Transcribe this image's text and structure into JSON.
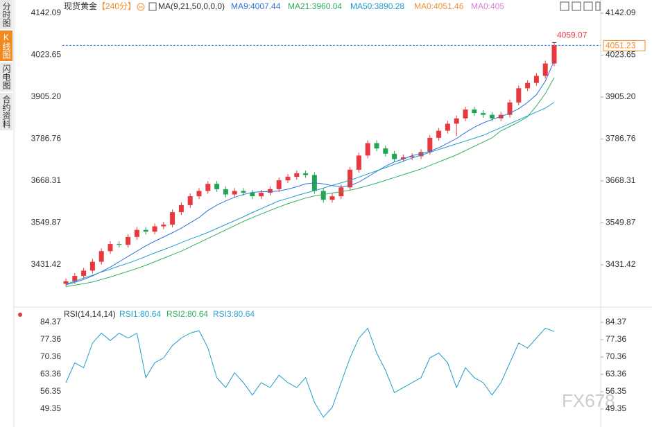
{
  "ui": {
    "tabs": [
      "分时图",
      "K线图",
      "闪电图",
      "合约资料"
    ],
    "active_tab": 1,
    "watermark": "FX678"
  },
  "chart_data": [
    {
      "type": "candlestick",
      "title": "现货黄金",
      "subtitle": "【240分】",
      "indicator": "MA(9,21,50,0,0,0)",
      "up_color": "#e8383d",
      "down_color": "#21a453",
      "open": [
        3378,
        3385,
        3400,
        3415,
        3440,
        3470,
        3490,
        3488,
        3510,
        3530,
        3525,
        3540,
        3545,
        3580,
        3600,
        3625,
        3640,
        3660,
        3645,
        3630,
        3640,
        3635,
        3625,
        3635,
        3645,
        3670,
        3680,
        3690,
        3685,
        3640,
        3615,
        3625,
        3650,
        3700,
        3740,
        3775,
        3760,
        3745,
        3730,
        3735,
        3738,
        3750,
        3790,
        3810,
        3830,
        3845,
        3870,
        3860,
        3855,
        3845,
        3855,
        3890,
        3930,
        3945,
        3965,
        4000
      ],
      "high": [
        3393,
        3408,
        3423,
        3448,
        3478,
        3498,
        3498,
        3518,
        3538,
        3538,
        3548,
        3553,
        3588,
        3608,
        3633,
        3648,
        3668,
        3668,
        3653,
        3648,
        3648,
        3643,
        3643,
        3653,
        3678,
        3688,
        3698,
        3698,
        3693,
        3648,
        3633,
        3658,
        3708,
        3748,
        3783,
        3783,
        3768,
        3753,
        3743,
        3746,
        3758,
        3798,
        3818,
        3838,
        3853,
        3878,
        3878,
        3868,
        3863,
        3863,
        3898,
        3938,
        3953,
        3973,
        4008,
        4059.07
      ],
      "low": [
        3370,
        3377,
        3392,
        3407,
        3432,
        3462,
        3480,
        3480,
        3502,
        3517,
        3517,
        3532,
        3537,
        3572,
        3592,
        3617,
        3632,
        3637,
        3622,
        3622,
        3627,
        3617,
        3617,
        3627,
        3637,
        3662,
        3672,
        3677,
        3632,
        3607,
        3607,
        3617,
        3642,
        3692,
        3732,
        3752,
        3737,
        3722,
        3722,
        3727,
        3730,
        3742,
        3782,
        3802,
        3795,
        3837,
        3852,
        3847,
        3837,
        3837,
        3847,
        3882,
        3922,
        3937,
        3957,
        3992
      ],
      "close": [
        3385,
        3400,
        3415,
        3440,
        3470,
        3490,
        3488,
        3510,
        3530,
        3525,
        3540,
        3545,
        3580,
        3600,
        3625,
        3640,
        3660,
        3645,
        3630,
        3640,
        3635,
        3625,
        3635,
        3645,
        3670,
        3680,
        3690,
        3685,
        3640,
        3615,
        3625,
        3650,
        3700,
        3740,
        3775,
        3760,
        3745,
        3730,
        3735,
        3738,
        3750,
        3790,
        3810,
        3830,
        3845,
        3870,
        3860,
        3855,
        3845,
        3855,
        3890,
        3930,
        3945,
        3965,
        4000,
        4051.23
      ],
      "series": [
        {
          "name": "MA9:4007.44",
          "color": "#2f74d8",
          "values": [
            3375,
            3382,
            3390,
            3400,
            3412,
            3425,
            3440,
            3455,
            3470,
            3485,
            3498,
            3510,
            3522,
            3535,
            3550,
            3565,
            3585,
            3600,
            3612,
            3622,
            3630,
            3636,
            3638,
            3638,
            3640,
            3645,
            3652,
            3660,
            3663,
            3660,
            3655,
            3652,
            3655,
            3665,
            3680,
            3695,
            3710,
            3722,
            3730,
            3740,
            3745,
            3752,
            3762,
            3775,
            3788,
            3805,
            3820,
            3832,
            3842,
            3850,
            3860,
            3872,
            3890,
            3912,
            3950,
            4007.44
          ]
        },
        {
          "name": "MA21:3960.04",
          "color": "#2fae5c",
          "values": [
            3370,
            3374,
            3378,
            3383,
            3390,
            3397,
            3405,
            3413,
            3421,
            3430,
            3440,
            3450,
            3460,
            3470,
            3482,
            3494,
            3506,
            3518,
            3530,
            3542,
            3554,
            3565,
            3575,
            3585,
            3595,
            3604,
            3612,
            3620,
            3626,
            3630,
            3634,
            3638,
            3642,
            3648,
            3655,
            3662,
            3670,
            3678,
            3686,
            3694,
            3702,
            3712,
            3722,
            3732,
            3742,
            3754,
            3766,
            3778,
            3790,
            3810,
            3822,
            3835,
            3850,
            3880,
            3915,
            3960.04
          ]
        },
        {
          "name": "MA50:3890.28",
          "color": "#1e9ec9",
          "values": [
            3377,
            3385,
            3394,
            3402,
            3411,
            3419,
            3428,
            3436,
            3445,
            3455,
            3465,
            3474,
            3484,
            3494,
            3504,
            3513,
            3523,
            3534,
            3545,
            3556,
            3567,
            3579,
            3590,
            3601,
            3612,
            3619,
            3627,
            3634,
            3641,
            3648,
            3656,
            3663,
            3670,
            3679,
            3688,
            3697,
            3706,
            3715,
            3724,
            3733,
            3741,
            3749,
            3757,
            3765,
            3773,
            3781,
            3789,
            3797,
            3808,
            3819,
            3830,
            3841,
            3852,
            3863,
            3874,
            3890.28
          ]
        }
      ],
      "extra_legend": [
        {
          "name": "MA0:4051.46",
          "color": "#f0923a"
        },
        {
          "name": "MA0:405",
          "color": "#d67fd8"
        }
      ],
      "ylim": [
        3317.9,
        4159.7
      ],
      "yticks": [
        4142.09,
        4023.65,
        {
          "value": 3905.2,
          "label": "3905.20"
        },
        3786.76,
        3668.31,
        3549.87,
        3431.42
      ],
      "grid": false
    },
    {
      "type": "line",
      "title": "RSI(14,14,14)",
      "series": [
        {
          "name": "RSI1:80.64",
          "color": "#1e9ec9",
          "values": [
            60,
            68,
            66,
            76,
            80,
            77,
            80,
            78,
            80,
            62,
            68,
            70,
            75,
            78,
            80,
            81,
            74,
            62,
            58,
            64,
            60,
            55,
            60,
            58,
            63,
            60,
            58,
            62,
            52,
            46,
            50,
            60,
            70,
            78,
            82,
            72,
            65,
            56,
            58,
            60,
            62,
            70,
            72,
            68,
            58,
            66,
            62,
            60,
            55,
            60,
            68,
            76,
            74,
            78,
            82,
            80.64
          ]
        }
      ],
      "extra_legend": [
        {
          "name": "RSI2:80.64",
          "color": "#2fae5c"
        },
        {
          "name": "RSI3:80.64",
          "color": "#2f9fd8"
        }
      ],
      "ylim": [
        42.07,
        89.69
      ],
      "yticks": [
        84.37,
        77.36,
        70.36,
        63.36,
        56.35,
        49.35
      ],
      "grid": false
    }
  ]
}
